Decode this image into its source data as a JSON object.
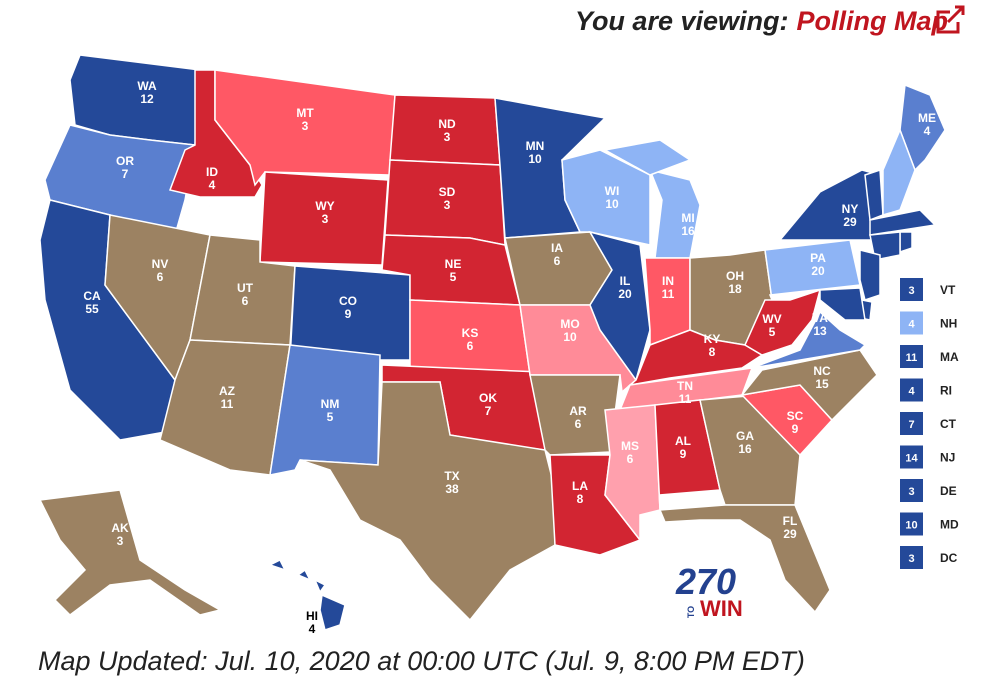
{
  "header": {
    "prefix": "You are viewing:",
    "link": "Polling Map"
  },
  "states": [
    {
      "abbr": "WA",
      "ev": 12,
      "color": "#244999"
    },
    {
      "abbr": "OR",
      "ev": 7,
      "color": "#5a7fcf"
    },
    {
      "abbr": "CA",
      "ev": 55,
      "color": "#244999"
    },
    {
      "abbr": "NV",
      "ev": 6,
      "color": "#9c8262"
    },
    {
      "abbr": "ID",
      "ev": 4,
      "color": "#d22532"
    },
    {
      "abbr": "MT",
      "ev": 3,
      "color": "#ff5865"
    },
    {
      "abbr": "WY",
      "ev": 3,
      "color": "#d22532"
    },
    {
      "abbr": "UT",
      "ev": 6,
      "color": "#9c8262"
    },
    {
      "abbr": "CO",
      "ev": 9,
      "color": "#244999"
    },
    {
      "abbr": "AZ",
      "ev": 11,
      "color": "#9c8262"
    },
    {
      "abbr": "NM",
      "ev": 5,
      "color": "#5a7fcf"
    },
    {
      "abbr": "ND",
      "ev": 3,
      "color": "#d22532"
    },
    {
      "abbr": "SD",
      "ev": 3,
      "color": "#d22532"
    },
    {
      "abbr": "NE",
      "ev": 5,
      "color": "#d22532"
    },
    {
      "abbr": "KS",
      "ev": 6,
      "color": "#ff5865"
    },
    {
      "abbr": "OK",
      "ev": 7,
      "color": "#d22532"
    },
    {
      "abbr": "TX",
      "ev": 38,
      "color": "#9c8262"
    },
    {
      "abbr": "MN",
      "ev": 10,
      "color": "#244999"
    },
    {
      "abbr": "IA",
      "ev": 6,
      "color": "#9c8262"
    },
    {
      "abbr": "MO",
      "ev": 10,
      "color": "#ff8b98"
    },
    {
      "abbr": "AR",
      "ev": 6,
      "color": "#9c8262"
    },
    {
      "abbr": "LA",
      "ev": 8,
      "color": "#d22532"
    },
    {
      "abbr": "WI",
      "ev": 10,
      "color": "#8eb4f5"
    },
    {
      "abbr": "IL",
      "ev": 20,
      "color": "#244999"
    },
    {
      "abbr": "MI",
      "ev": 16,
      "color": "#8eb4f5"
    },
    {
      "abbr": "IN",
      "ev": 11,
      "color": "#ff5865"
    },
    {
      "abbr": "OH",
      "ev": 18,
      "color": "#9c8262"
    },
    {
      "abbr": "KY",
      "ev": 8,
      "color": "#d22532"
    },
    {
      "abbr": "TN",
      "ev": 11,
      "color": "#ff8b98"
    },
    {
      "abbr": "MS",
      "ev": 6,
      "color": "#ffa0ad"
    },
    {
      "abbr": "AL",
      "ev": 9,
      "color": "#d22532"
    },
    {
      "abbr": "GA",
      "ev": 16,
      "color": "#9c8262"
    },
    {
      "abbr": "FL",
      "ev": 29,
      "color": "#9c8262"
    },
    {
      "abbr": "SC",
      "ev": 9,
      "color": "#ff5865"
    },
    {
      "abbr": "NC",
      "ev": 15,
      "color": "#9c8262"
    },
    {
      "abbr": "VA",
      "ev": 13,
      "color": "#5a7fcf"
    },
    {
      "abbr": "WV",
      "ev": 5,
      "color": "#d22532"
    },
    {
      "abbr": "PA",
      "ev": 20,
      "color": "#8eb4f5"
    },
    {
      "abbr": "NY",
      "ev": 29,
      "color": "#244999"
    },
    {
      "abbr": "ME",
      "ev": 4,
      "color": "#5a7fcf"
    },
    {
      "abbr": "AK",
      "ev": 3,
      "color": "#9c8262"
    },
    {
      "abbr": "HI",
      "ev": 4,
      "color": "#244999"
    }
  ],
  "sidebar": [
    {
      "abbr": "VT",
      "ev": 3,
      "color": "#244999"
    },
    {
      "abbr": "NH",
      "ev": 4,
      "color": "#8eb4f5"
    },
    {
      "abbr": "MA",
      "ev": 11,
      "color": "#244999"
    },
    {
      "abbr": "RI",
      "ev": 4,
      "color": "#244999"
    },
    {
      "abbr": "CT",
      "ev": 7,
      "color": "#244999"
    },
    {
      "abbr": "NJ",
      "ev": 14,
      "color": "#244999"
    },
    {
      "abbr": "DE",
      "ev": 3,
      "color": "#244999"
    },
    {
      "abbr": "MD",
      "ev": 10,
      "color": "#244999"
    },
    {
      "abbr": "DC",
      "ev": 3,
      "color": "#244999"
    }
  ],
  "logo": {
    "number": "270",
    "to": "TO",
    "win": "WIN"
  },
  "footer": "Map Updated: Jul. 10, 2020 at 00:00 UTC (Jul. 9, 8:00 PM EDT)"
}
